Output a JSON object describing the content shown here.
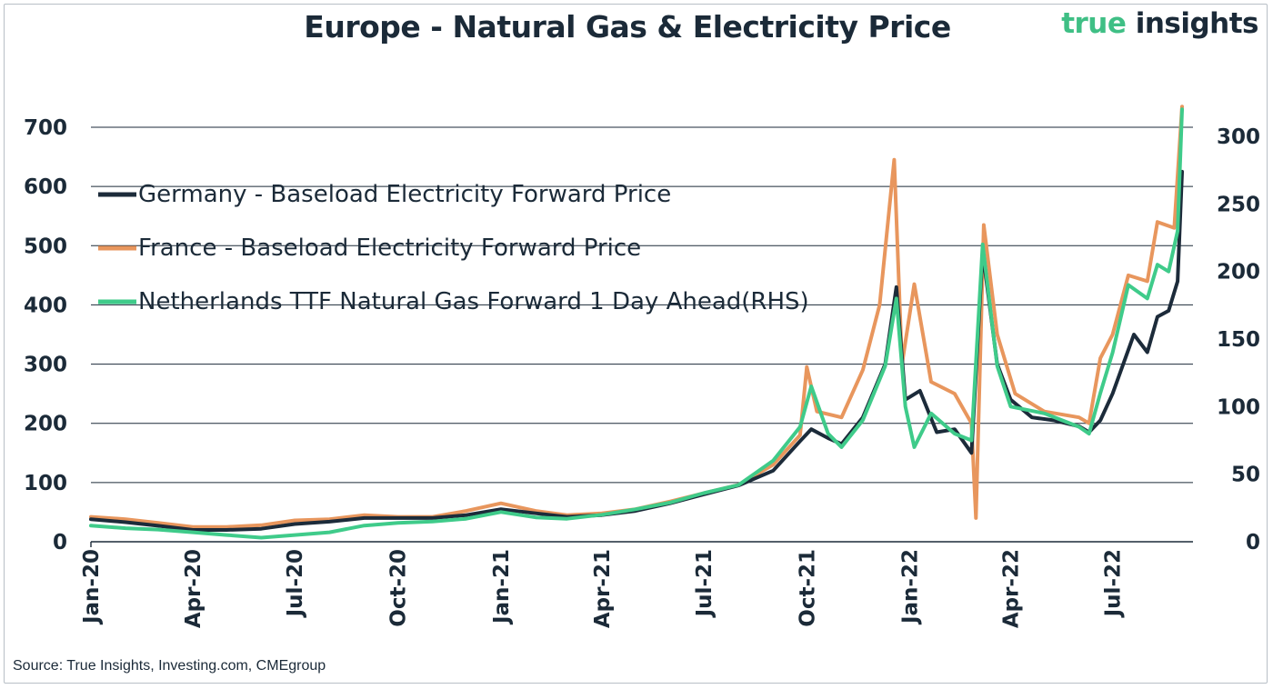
{
  "title": "Europe - Natural Gas & Electricity Price",
  "brand": {
    "part1": "true",
    "part2": "insights"
  },
  "source": "Source: True Insights, Investing.com, CMEgroup",
  "colors": {
    "germany": "#1c2b3a",
    "france": "#e8965d",
    "netherlands": "#3fcb8a",
    "brand_green": "#3fbf85"
  },
  "chart_data": {
    "type": "line",
    "title": "Europe - Natural Gas & Electricity Price",
    "xlabel": "",
    "ylabel": "",
    "x_ticks": [
      "Jan-20",
      "Apr-20",
      "Jul-20",
      "Oct-20",
      "Jan-21",
      "Apr-21",
      "Jul-21",
      "Oct-21",
      "Jan-22",
      "Apr-22",
      "Jul-22"
    ],
    "y_left": {
      "ticks": [
        0,
        100,
        200,
        300,
        400,
        500,
        600,
        700
      ],
      "range": [
        0,
        700
      ]
    },
    "y_right": {
      "ticks": [
        0,
        50,
        100,
        150,
        200,
        250,
        300
      ],
      "range": [
        0,
        300
      ]
    },
    "grid": true,
    "legend_position": "top-left",
    "series": [
      {
        "name": "Germany - Baseload Electricity Forward Price",
        "axis": "left",
        "points": [
          [
            "2020-01-01",
            38
          ],
          [
            "2020-02-01",
            33
          ],
          [
            "2020-03-01",
            27
          ],
          [
            "2020-04-01",
            20
          ],
          [
            "2020-05-01",
            20
          ],
          [
            "2020-06-01",
            22
          ],
          [
            "2020-07-01",
            30
          ],
          [
            "2020-08-01",
            34
          ],
          [
            "2020-09-01",
            40
          ],
          [
            "2020-10-01",
            40
          ],
          [
            "2020-11-01",
            40
          ],
          [
            "2020-12-01",
            45
          ],
          [
            "2021-01-01",
            55
          ],
          [
            "2021-02-01",
            48
          ],
          [
            "2021-03-01",
            42
          ],
          [
            "2021-04-01",
            45
          ],
          [
            "2021-05-01",
            52
          ],
          [
            "2021-06-01",
            65
          ],
          [
            "2021-07-01",
            80
          ],
          [
            "2021-08-01",
            95
          ],
          [
            "2021-09-01",
            120
          ],
          [
            "2021-09-25",
            170
          ],
          [
            "2021-10-05",
            190
          ],
          [
            "2021-10-20",
            175
          ],
          [
            "2021-11-01",
            165
          ],
          [
            "2021-11-20",
            210
          ],
          [
            "2021-12-10",
            300
          ],
          [
            "2021-12-20",
            430
          ],
          [
            "2021-12-28",
            240
          ],
          [
            "2022-01-10",
            255
          ],
          [
            "2022-01-25",
            185
          ],
          [
            "2022-02-10",
            190
          ],
          [
            "2022-02-25",
            150
          ],
          [
            "2022-03-07",
            490
          ],
          [
            "2022-03-20",
            300
          ],
          [
            "2022-04-01",
            240
          ],
          [
            "2022-04-20",
            210
          ],
          [
            "2022-05-10",
            205
          ],
          [
            "2022-06-01",
            195
          ],
          [
            "2022-06-10",
            185
          ],
          [
            "2022-06-20",
            205
          ],
          [
            "2022-07-01",
            250
          ],
          [
            "2022-07-20",
            350
          ],
          [
            "2022-08-01",
            320
          ],
          [
            "2022-08-10",
            380
          ],
          [
            "2022-08-20",
            390
          ],
          [
            "2022-08-28",
            440
          ],
          [
            "2022-09-01",
            625
          ]
        ]
      },
      {
        "name": "France - Baseload Electricity Forward Price",
        "axis": "left",
        "points": [
          [
            "2020-01-01",
            42
          ],
          [
            "2020-02-01",
            38
          ],
          [
            "2020-03-01",
            32
          ],
          [
            "2020-04-01",
            25
          ],
          [
            "2020-05-01",
            25
          ],
          [
            "2020-06-01",
            28
          ],
          [
            "2020-07-01",
            36
          ],
          [
            "2020-08-01",
            38
          ],
          [
            "2020-09-01",
            45
          ],
          [
            "2020-10-01",
            42
          ],
          [
            "2020-11-01",
            42
          ],
          [
            "2020-12-01",
            52
          ],
          [
            "2021-01-01",
            65
          ],
          [
            "2021-02-01",
            52
          ],
          [
            "2021-03-01",
            45
          ],
          [
            "2021-04-01",
            48
          ],
          [
            "2021-05-01",
            55
          ],
          [
            "2021-06-01",
            68
          ],
          [
            "2021-07-01",
            82
          ],
          [
            "2021-08-01",
            96
          ],
          [
            "2021-09-01",
            130
          ],
          [
            "2021-09-25",
            180
          ],
          [
            "2021-10-01",
            295
          ],
          [
            "2021-10-10",
            220
          ],
          [
            "2021-11-01",
            210
          ],
          [
            "2021-11-20",
            290
          ],
          [
            "2021-12-05",
            400
          ],
          [
            "2021-12-18",
            645
          ],
          [
            "2021-12-25",
            300
          ],
          [
            "2022-01-05",
            435
          ],
          [
            "2022-01-20",
            270
          ],
          [
            "2022-02-10",
            250
          ],
          [
            "2022-02-25",
            200
          ],
          [
            "2022-03-01",
            40
          ],
          [
            "2022-03-08",
            535
          ],
          [
            "2022-03-20",
            350
          ],
          [
            "2022-04-05",
            250
          ],
          [
            "2022-05-01",
            220
          ],
          [
            "2022-06-01",
            210
          ],
          [
            "2022-06-10",
            200
          ],
          [
            "2022-06-20",
            310
          ],
          [
            "2022-07-01",
            350
          ],
          [
            "2022-07-15",
            450
          ],
          [
            "2022-08-01",
            440
          ],
          [
            "2022-08-10",
            540
          ],
          [
            "2022-08-25",
            530
          ],
          [
            "2022-09-01",
            735
          ]
        ]
      },
      {
        "name": "Netherlands TTF Natural Gas Forward 1 Day Ahead(RHS)",
        "axis": "right",
        "points": [
          [
            "2020-01-01",
            12
          ],
          [
            "2020-02-01",
            10
          ],
          [
            "2020-03-01",
            9
          ],
          [
            "2020-04-01",
            7
          ],
          [
            "2020-05-01",
            5
          ],
          [
            "2020-06-01",
            3
          ],
          [
            "2020-07-01",
            5
          ],
          [
            "2020-08-01",
            7
          ],
          [
            "2020-09-01",
            12
          ],
          [
            "2020-10-01",
            14
          ],
          [
            "2020-11-01",
            15
          ],
          [
            "2020-12-01",
            17
          ],
          [
            "2021-01-01",
            22
          ],
          [
            "2021-02-01",
            18
          ],
          [
            "2021-03-01",
            17
          ],
          [
            "2021-04-01",
            20
          ],
          [
            "2021-05-01",
            24
          ],
          [
            "2021-06-01",
            29
          ],
          [
            "2021-07-01",
            36
          ],
          [
            "2021-08-01",
            42
          ],
          [
            "2021-09-01",
            60
          ],
          [
            "2021-09-25",
            85
          ],
          [
            "2021-10-05",
            115
          ],
          [
            "2021-10-20",
            80
          ],
          [
            "2021-11-01",
            70
          ],
          [
            "2021-11-20",
            90
          ],
          [
            "2021-12-10",
            130
          ],
          [
            "2021-12-20",
            180
          ],
          [
            "2021-12-28",
            100
          ],
          [
            "2022-01-05",
            70
          ],
          [
            "2022-01-20",
            95
          ],
          [
            "2022-02-10",
            80
          ],
          [
            "2022-02-25",
            75
          ],
          [
            "2022-03-07",
            220
          ],
          [
            "2022-03-20",
            130
          ],
          [
            "2022-04-01",
            100
          ],
          [
            "2022-05-01",
            95
          ],
          [
            "2022-06-01",
            85
          ],
          [
            "2022-06-10",
            80
          ],
          [
            "2022-06-20",
            110
          ],
          [
            "2022-07-01",
            140
          ],
          [
            "2022-07-15",
            190
          ],
          [
            "2022-08-01",
            180
          ],
          [
            "2022-08-10",
            205
          ],
          [
            "2022-08-20",
            200
          ],
          [
            "2022-08-28",
            230
          ],
          [
            "2022-09-01",
            320
          ]
        ]
      }
    ]
  }
}
